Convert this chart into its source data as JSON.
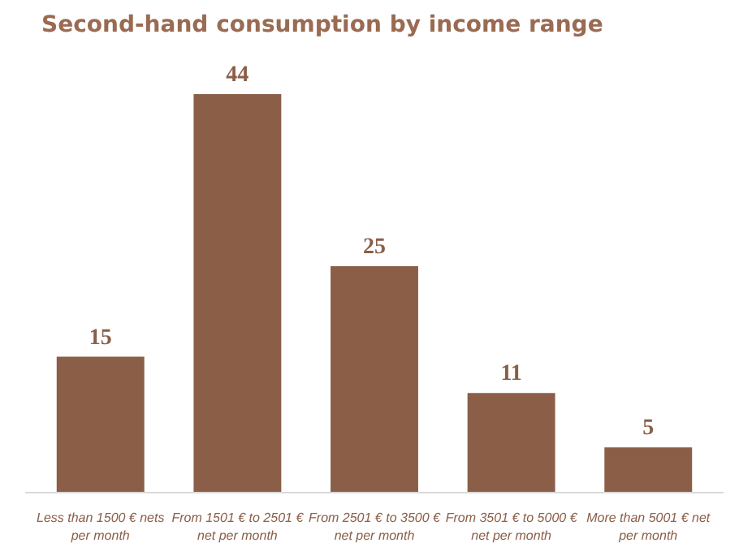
{
  "chart_data": {
    "type": "bar",
    "title": "Second-hand consumption by income range",
    "categories": [
      "Less than 1500 € nets per month",
      "From 1501 € to 2501 € net per month",
      "From 2501 € to 3500 € net per month",
      "From 3501 € to 5000 € net per month",
      "More than 5001 € net per month"
    ],
    "values": [
      15,
      44,
      25,
      11,
      5
    ],
    "color": "#8b5e47",
    "data_labels": true,
    "grid": false
  }
}
